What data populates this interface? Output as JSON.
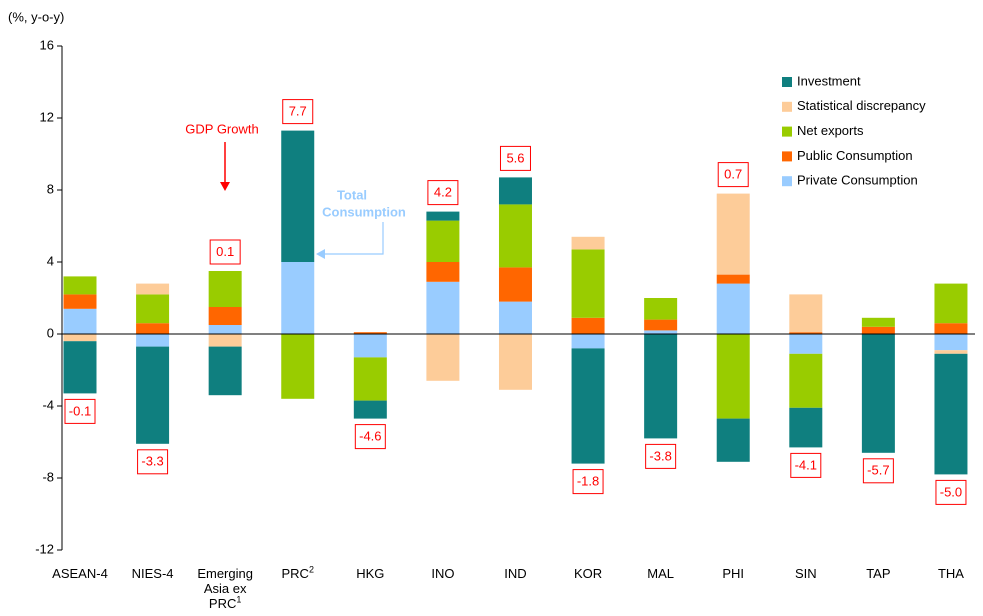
{
  "chart_data": {
    "type": "stacked_bar",
    "y_axis_label": "(%, y-o-y)",
    "categories": [
      "ASEAN-4",
      "NIES-4",
      "Emerging Asia ex PRC",
      "PRC",
      "HKG",
      "INO",
      "IND",
      "KOR",
      "MAL",
      "PHI",
      "SIN",
      "TAP",
      "THA"
    ],
    "category_notes": [
      null,
      null,
      "1",
      "2",
      null,
      null,
      null,
      null,
      null,
      null,
      null,
      null,
      null
    ],
    "series": [
      {
        "name": "Investment",
        "color": "#0f7f7f",
        "values": [
          -2.9,
          -5.4,
          -2.7,
          7.3,
          -1.0,
          0.5,
          1.5,
          -6.4,
          -5.8,
          -2.4,
          -2.2,
          -6.6,
          -6.7
        ]
      },
      {
        "name": "Statistical discrepancy",
        "color": "#fdcc99",
        "values": [
          -0.4,
          0.6,
          -0.7,
          0,
          0,
          -2.6,
          -3.1,
          0.7,
          0,
          4.5,
          2.1,
          0,
          -0.2
        ]
      },
      {
        "name": "Net exports",
        "color": "#99cc00",
        "values": [
          1.0,
          1.6,
          2.0,
          -3.6,
          -2.4,
          2.3,
          3.5,
          3.8,
          1.2,
          -4.7,
          -3.0,
          0.5,
          2.2
        ]
      },
      {
        "name": "Public Consumption",
        "color": "#ff6600",
        "values": [
          0.8,
          0.6,
          1.0,
          0,
          0.1,
          1.1,
          1.9,
          0.9,
          0.6,
          0.5,
          0.1,
          0.4,
          0.6
        ]
      },
      {
        "name": "Private Consumption",
        "color": "#99ccff",
        "values": [
          1.4,
          -0.7,
          0.5,
          4.0,
          -1.3,
          2.9,
          1.8,
          -0.8,
          0.2,
          2.8,
          -1.1,
          0,
          -0.9
        ]
      }
    ],
    "gdp_growth": {
      "values": [
        -0.1,
        -3.3,
        0.1,
        7.7,
        -4.6,
        4.2,
        5.6,
        -1.8,
        -3.8,
        0.7,
        -4.1,
        -5.7,
        -5.0
      ],
      "value_labels": [
        "-0.1",
        "-3.3",
        "0.1",
        "7.7",
        "-4.6",
        "4.2",
        "5.6",
        "-1.8",
        "-3.8",
        "0.7",
        "-4.1",
        "-5.7",
        "-5.0"
      ]
    },
    "annotations": {
      "gdp_growth": "GDP Growth",
      "total_consumption": [
        "Total",
        "Consumption"
      ]
    },
    "ylim": [
      -12,
      16
    ],
    "yticks": [
      -12,
      -8,
      -4,
      0,
      4,
      8,
      12,
      16
    ],
    "legend": "top-right"
  }
}
